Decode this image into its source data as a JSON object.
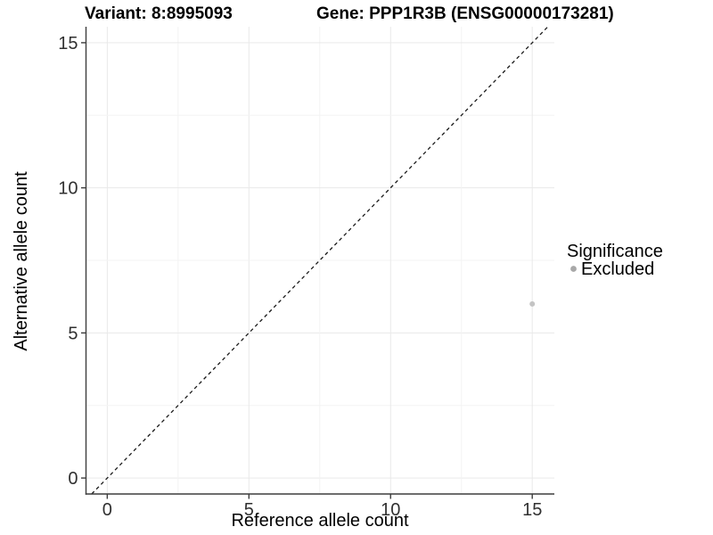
{
  "title": {
    "variant": "Variant: 8:8995093",
    "gene": "Gene: PPP1R3B (ENSG00000173281)"
  },
  "axes": {
    "x": {
      "label": "Reference allele count"
    },
    "y": {
      "label": "Alternative allele count"
    }
  },
  "legend": {
    "title": "Significance",
    "items": [
      {
        "label": "Excluded",
        "color": "#a8a8a8"
      }
    ]
  },
  "chart_data": {
    "type": "scatter",
    "title_left": "Variant: 8:8995093",
    "title_right": "Gene: PPP1R3B (ENSG00000173281)",
    "xlabel": "Reference allele count",
    "ylabel": "Alternative allele count",
    "x_ticks": [
      0,
      5,
      10,
      15
    ],
    "y_ticks": [
      0,
      5,
      10,
      15
    ],
    "xlim": [
      -0.75,
      15.78
    ],
    "ylim": [
      -0.55,
      15.55
    ],
    "grid_interval": 2.5,
    "grid_max": 15,
    "grid_on": true,
    "points": [
      {
        "x": 15,
        "y": 6,
        "significance": "Excluded",
        "color": "#c4c4c4",
        "radius": 3
      }
    ],
    "reference_line": {
      "type": "identity",
      "equation": "y = x",
      "style": "dashed",
      "color": "#1a1a1a"
    },
    "legend_position": "right",
    "colors": {
      "grid_major": "#e9e9e9",
      "grid_minor": "#f3f3f3",
      "axis": "#3d3d3d",
      "legend_key": "#a8a8a8"
    }
  }
}
